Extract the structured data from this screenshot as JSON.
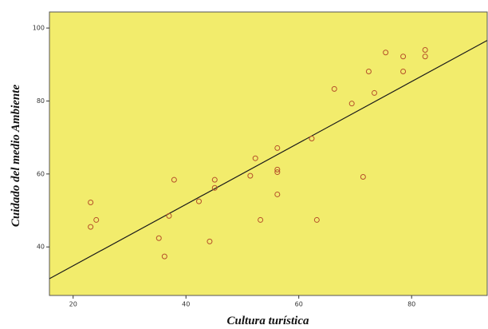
{
  "chart_data": {
    "type": "scatter",
    "x_label": "Cultura turística",
    "y_label": "Cuidado del medio Ambiente",
    "background": "#f2ec6c",
    "marker_color": "#b5502a",
    "line_color": "#1a1a1a",
    "x": [
      23.1,
      24.1,
      23.1,
      35.2,
      36.2,
      37.0,
      37.9,
      42.3,
      44.2,
      45.1,
      45.1,
      51.4,
      52.3,
      53.2,
      56.2,
      56.2,
      56.2,
      56.2,
      62.3,
      63.2,
      66.3,
      69.4,
      71.4,
      72.4,
      73.4,
      75.4,
      78.5,
      78.5,
      82.4,
      82.4
    ],
    "values": [
      52.2,
      47.4,
      45.5,
      42.4,
      37.4,
      48.5,
      58.4,
      52.5,
      41.5,
      58.4,
      56.2,
      59.5,
      64.3,
      47.4,
      67.1,
      61.2,
      60.5,
      54.4,
      69.7,
      47.4,
      83.3,
      79.3,
      59.2,
      88.1,
      82.2,
      93.3,
      92.2,
      88.1,
      94.0,
      92.2
    ],
    "fit_line": {
      "x": [
        15.8,
        93.4
      ],
      "y": [
        31.3,
        96.6
      ]
    },
    "xlim": [
      15.8,
      93.4
    ],
    "xticks": [
      20,
      40,
      60,
      80
    ],
    "ylim": [
      26.7,
      104.4
    ],
    "yticks": [
      40,
      60,
      80,
      100
    ]
  }
}
